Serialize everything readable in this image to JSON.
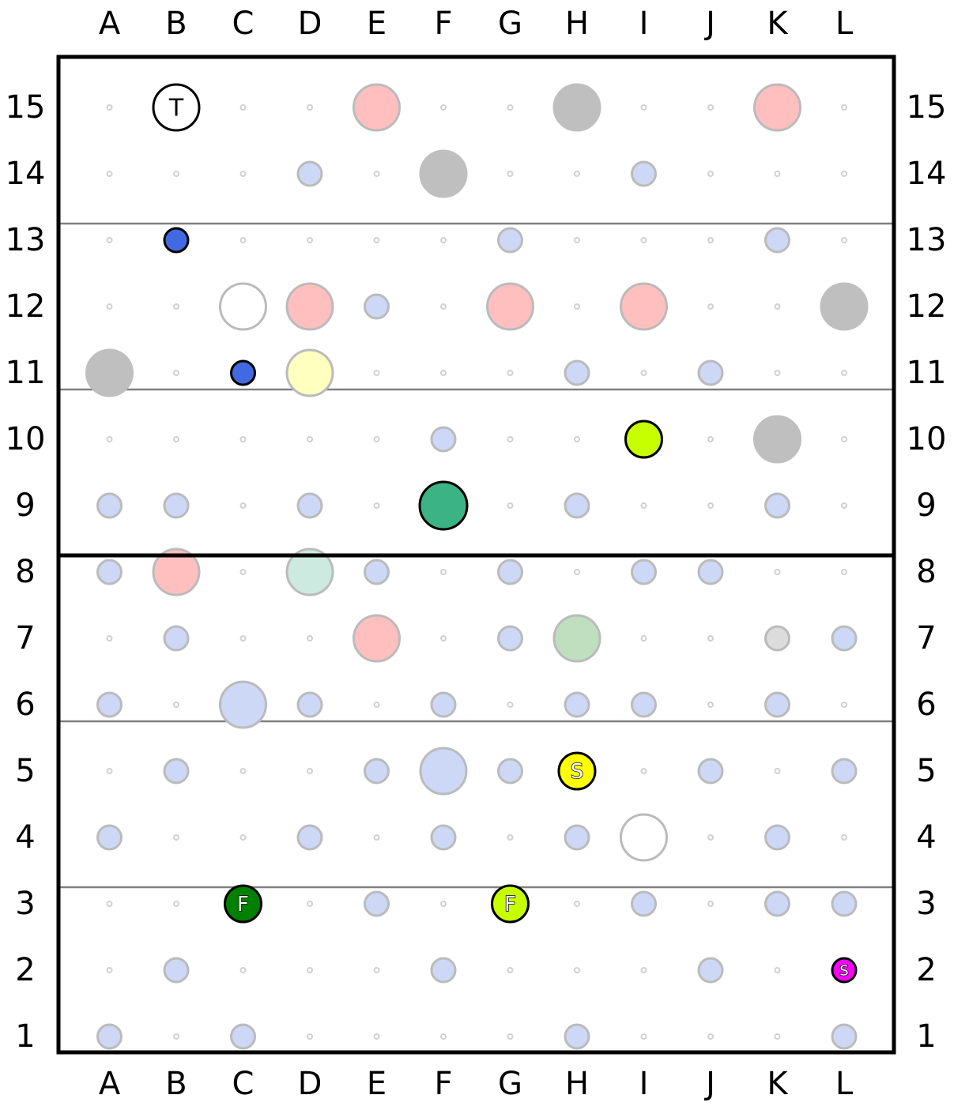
{
  "board": {
    "columns": [
      "A",
      "B",
      "C",
      "D",
      "E",
      "F",
      "G",
      "H",
      "I",
      "J",
      "K",
      "L"
    ],
    "rows": [
      "15",
      "14",
      "13",
      "12",
      "11",
      "10",
      "9",
      "8",
      "7",
      "6",
      "5",
      "4",
      "3",
      "2",
      "1"
    ],
    "small_blue_markers": [
      "D14",
      "I14",
      "G13",
      "K13",
      "E12",
      "H11",
      "J11",
      "F10",
      "A9",
      "B9",
      "D9",
      "H9",
      "K9",
      "A8",
      "E8",
      "G8",
      "I8",
      "J8",
      "B7",
      "G7",
      "L7",
      "A6",
      "D6",
      "F6",
      "H6",
      "I6",
      "K6",
      "B5",
      "E5",
      "G5",
      "J5",
      "L5",
      "A4",
      "D4",
      "F4",
      "H4",
      "K4",
      "E3",
      "I3",
      "K3",
      "L3",
      "B2",
      "F2",
      "J2",
      "A1",
      "C1",
      "H1",
      "L1"
    ],
    "large_markers": [
      {
        "cell": "E15",
        "kind": "pink"
      },
      {
        "cell": "H15",
        "kind": "gray"
      },
      {
        "cell": "K15",
        "kind": "pink"
      },
      {
        "cell": "F14",
        "kind": "gray"
      },
      {
        "cell": "C12",
        "kind": "white-ring"
      },
      {
        "cell": "D12",
        "kind": "pink"
      },
      {
        "cell": "G12",
        "kind": "pink"
      },
      {
        "cell": "I12",
        "kind": "pink"
      },
      {
        "cell": "L12",
        "kind": "gray"
      },
      {
        "cell": "A11",
        "kind": "gray"
      },
      {
        "cell": "D11",
        "kind": "yellow"
      },
      {
        "cell": "K10",
        "kind": "gray"
      },
      {
        "cell": "B8",
        "kind": "pink"
      },
      {
        "cell": "D8",
        "kind": "mint"
      },
      {
        "cell": "E7",
        "kind": "pink"
      },
      {
        "cell": "H7",
        "kind": "green"
      },
      {
        "cell": "C6",
        "kind": "blue"
      },
      {
        "cell": "F5",
        "kind": "blue"
      },
      {
        "cell": "I4",
        "kind": "white-ring"
      }
    ],
    "medium_markers": [
      {
        "cell": "K7",
        "kind": "lightgray"
      }
    ],
    "pieces": [
      {
        "cell": "B15",
        "label": "T",
        "color": "#ffffff",
        "size": "large",
        "label_color": "#000000"
      },
      {
        "cell": "B13",
        "label": "",
        "color": "#4169e1",
        "size": "small"
      },
      {
        "cell": "C11",
        "label": "",
        "color": "#4169e1",
        "size": "small"
      },
      {
        "cell": "I10",
        "label": "",
        "color": "#c8ff00",
        "size": "medium"
      },
      {
        "cell": "F9",
        "label": "",
        "color": "#3cb384",
        "size": "xlarge"
      },
      {
        "cell": "H5",
        "label": "S",
        "color": "#ffff00",
        "size": "medium"
      },
      {
        "cell": "C3",
        "label": "F",
        "color": "#008000",
        "size": "medium"
      },
      {
        "cell": "G3",
        "label": "F",
        "color": "#c8ff00",
        "size": "medium"
      },
      {
        "cell": "L2",
        "label": "S",
        "color": "#ff00ff",
        "size": "small"
      }
    ],
    "colors": {
      "small_blue_fill": "#ccd8f5",
      "marker_stroke": "#bbbbbb",
      "pink": "#ffbfbf",
      "gray": "#bfbfbf",
      "yellow": "#ffffc0",
      "mint": "#cceae0",
      "green": "#bfdfbf",
      "blue": "#ccd8f5",
      "lightgray": "#dcdcdc",
      "dot": "#d0d0d0",
      "grid_line": "#808080"
    }
  }
}
